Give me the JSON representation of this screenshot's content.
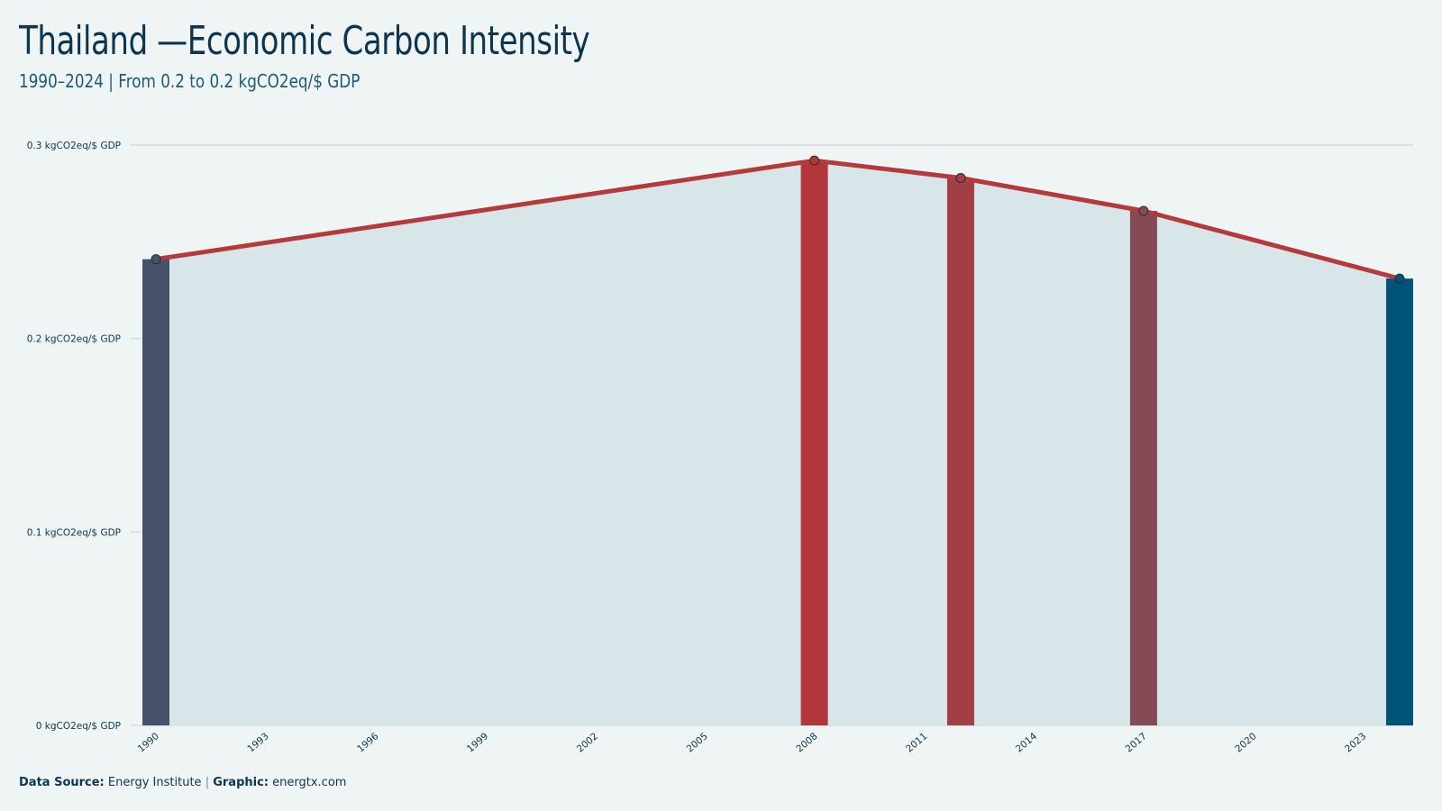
{
  "header": {
    "title": "Thailand —Economic Carbon Intensity",
    "subtitle": "1990–2024 | From 0.2 to 0.2 kgCO2eq/$ GDP"
  },
  "footer": {
    "source_label": "Data Source:",
    "source_value": "Energy Institute",
    "separator": "|",
    "graphic_label": "Graphic:",
    "graphic_value": "energtx.com"
  },
  "chart_data": {
    "type": "bar",
    "overlay": "line-area",
    "xlim": [
      1990,
      2024
    ],
    "ylim": [
      0,
      0.3
    ],
    "yticks": [
      {
        "value": 0,
        "label": "0 kgCO2eq/$ GDP"
      },
      {
        "value": 0.1,
        "label": "0.1 kgCO2eq/$ GDP"
      },
      {
        "value": 0.2,
        "label": "0.2 kgCO2eq/$ GDP"
      },
      {
        "value": 0.3,
        "label": "0.3 kgCO2eq/$ GDP"
      }
    ],
    "xticks": [
      "1990",
      "1993",
      "1996",
      "1999",
      "2002",
      "2005",
      "2008",
      "2011",
      "2014",
      "2017",
      "2020",
      "2023"
    ],
    "points": [
      {
        "x": 1990,
        "y": 0.241
      },
      {
        "x": 2008,
        "y": 0.292
      },
      {
        "x": 2012,
        "y": 0.283
      },
      {
        "x": 2017,
        "y": 0.266
      },
      {
        "x": 2024,
        "y": 0.231
      }
    ],
    "bar_colors": [
      "#45526a",
      "#b0363a",
      "#a13f45",
      "#844b55",
      "#005477"
    ],
    "line_color": "#b53a3c",
    "area_color": "#d8e5e9",
    "grid": true
  },
  "colors": {
    "background": "#eff5f5",
    "text": "#0d3550",
    "grid": "#c9d6d9"
  }
}
